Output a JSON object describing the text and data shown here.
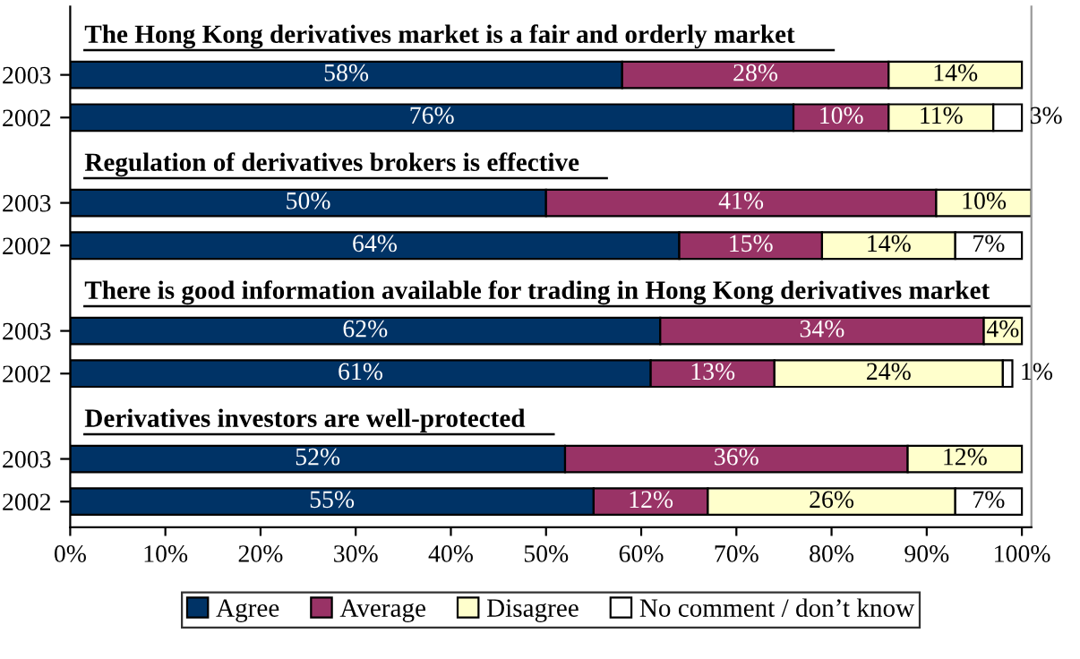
{
  "chart_data": {
    "type": "bar",
    "orientation": "horizontal",
    "stacked": true,
    "categories": [
      "2003",
      "2002",
      "2003",
      "2002",
      "2003",
      "2002",
      "2003",
      "2002"
    ],
    "annotations": [
      "The Hong Kong derivatives market is a fair and orderly market",
      "Regulation of derivatives brokers is effective",
      "There is good information available for trading in Hong Kong derivatives market",
      "Derivatives investors are well-protected"
    ],
    "series": [
      {
        "name": "Agree",
        "color": "#003366",
        "values": [
          58,
          76,
          50,
          64,
          62,
          61,
          52,
          55
        ],
        "value_labels": [
          "58%",
          "76%",
          "50%",
          "64%",
          "62%",
          "61%",
          "52%",
          "55%"
        ]
      },
      {
        "name": "Average",
        "color": "#993366",
        "values": [
          28,
          10,
          41,
          15,
          34,
          13,
          36,
          12
        ],
        "value_labels": [
          "28%",
          "10%",
          "41%",
          "15%",
          "34%",
          "13%",
          "36%",
          "12%"
        ]
      },
      {
        "name": "Disagree",
        "color": "#ffffcc",
        "values": [
          14,
          11,
          10,
          14,
          4,
          24,
          12,
          26
        ],
        "value_labels": [
          "14%",
          "11%",
          "10%",
          "14%",
          "4%",
          "24%",
          "12%",
          "26%"
        ]
      },
      {
        "name": "No comment / don’t know",
        "color": "#ffffff",
        "values": [
          null,
          3,
          null,
          7,
          null,
          1,
          null,
          7
        ],
        "value_labels": [
          null,
          "3%",
          null,
          "7%",
          null,
          "1%",
          null,
          "7%"
        ]
      }
    ],
    "xlim": [
      0,
      101
    ],
    "xticks": [
      {
        "value": 0,
        "label": "0%"
      },
      {
        "value": 10,
        "label": "10%"
      },
      {
        "value": 20,
        "label": "20%"
      },
      {
        "value": 30,
        "label": "30%"
      },
      {
        "value": 40,
        "label": "40%"
      },
      {
        "value": 50,
        "label": "50%"
      },
      {
        "value": 60,
        "label": "60%"
      },
      {
        "value": 70,
        "label": "70%"
      },
      {
        "value": 80,
        "label": "80%"
      },
      {
        "value": 90,
        "label": "90%"
      },
      {
        "value": 100,
        "label": "100%"
      }
    ],
    "grid": false,
    "legend": "bottom"
  }
}
